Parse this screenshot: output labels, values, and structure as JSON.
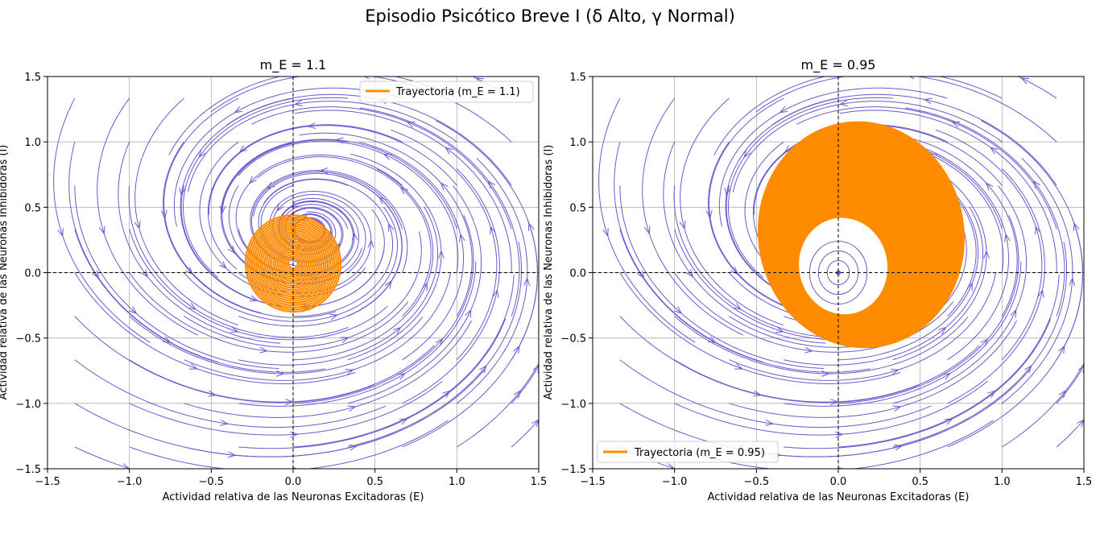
{
  "suptitle": "Episodio Psicótico Breve I (δ Alto, γ Normal)",
  "colors": {
    "stream": "#6a5acd",
    "trajectory": "#ff8c00",
    "grid": "#b0b0b0",
    "nullline": "#000000"
  },
  "chart_data": [
    {
      "type": "line",
      "subtype": "phase-portrait-streamplot",
      "title": "m_E = 1.1",
      "xlabel": "Actividad relativa de las Neuronas Excitadoras (E)",
      "ylabel": "Actividad relativa de las Neuronas Inhibidoras (I)",
      "xlim": [
        -1.5,
        1.5
      ],
      "ylim": [
        -1.5,
        1.5
      ],
      "xticks": [
        "−1.5",
        "−1.0",
        "−0.5",
        "0.0",
        "0.5",
        "1.0",
        "1.5"
      ],
      "yticks": [
        "−1.5",
        "−1.0",
        "−0.5",
        "0.0",
        "0.5",
        "1.0",
        "1.5"
      ],
      "grid": true,
      "reference_lines": {
        "x": 0,
        "y": 0,
        "style": "dashed"
      },
      "legend": {
        "position": "upper right",
        "entries": [
          "Trayectoria (m_E = 1.1)"
        ]
      },
      "series": [
        {
          "name": "Trayectoria (m_E = 1.1)",
          "kind": "limit-cycle",
          "center": [
            0.0,
            0.07
          ],
          "outer_radius": [
            0.29,
            0.37
          ],
          "inner_radius": [
            0.0,
            0.0
          ],
          "tilt_deg": -20
        }
      ],
      "field": {
        "fixed_point": [
          0,
          0
        ],
        "rotation": "counterclockwise",
        "shear": 0.45
      }
    },
    {
      "type": "line",
      "subtype": "phase-portrait-streamplot",
      "title": "m_E = 0.95",
      "xlabel": "Actividad relativa de las Neuronas Excitadoras (E)",
      "ylabel": "Actividad relativa de las Neuronas Inhibidoras (I)",
      "xlim": [
        -1.5,
        1.5
      ],
      "ylim": [
        -1.5,
        1.5
      ],
      "xticks": [
        "−1.5",
        "−1.0",
        "−0.5",
        "0.0",
        "0.5",
        "1.0",
        "1.5"
      ],
      "yticks": [
        "−1.5",
        "−1.0",
        "−0.5",
        "0.0",
        "0.5",
        "1.0",
        "1.5"
      ],
      "grid": true,
      "reference_lines": {
        "x": 0,
        "y": 0,
        "style": "dashed"
      },
      "legend": {
        "position": "lower left",
        "entries": [
          "Trayectoria (m_E = 0.95)"
        ]
      },
      "series": [
        {
          "name": "Trayectoria (m_E = 0.95)",
          "kind": "spiral-band",
          "center": [
            0.14,
            0.29
          ],
          "outer_radius": [
            0.63,
            0.87
          ],
          "inner_center": [
            0.03,
            0.05
          ],
          "inner_radius": [
            0.27,
            0.37
          ],
          "tilt_deg": -10
        }
      ],
      "field": {
        "fixed_point": [
          0,
          0
        ],
        "rotation": "counterclockwise",
        "shear": 0.45
      }
    }
  ]
}
